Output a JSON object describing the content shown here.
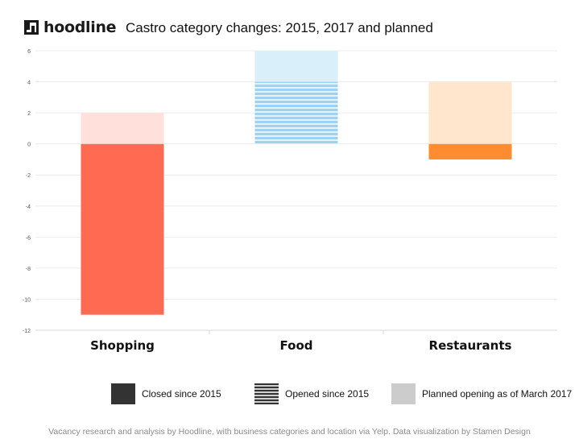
{
  "header": {
    "logo_text": "hoodline",
    "title": "Castro category changes: 2015, 2017 and planned"
  },
  "legend": {
    "closed_label": "Closed since 2015",
    "opened_label": "Opened since 2015",
    "planned_label": "Planned opening as of March 2017"
  },
  "footer": {
    "credit": "Vacancy research and analysis by Hoodline, with business categories and location via Yelp. Data visualization by Stamen Design"
  },
  "colors": {
    "shopping_closed": "#ff6b52",
    "shopping_planned": "#ffe0da",
    "food_opened_stripe": "#9fd2f0",
    "food_opened_gap": "#e4f3fb",
    "food_planned": "#d9eff9",
    "restaurants_closed": "#ff8c2e",
    "restaurants_planned": "#ffe6cc"
  },
  "chart_data": {
    "type": "bar",
    "title": "Castro category changes: 2015, 2017 and planned",
    "xlabel": "",
    "ylabel": "",
    "ylim": [
      -12,
      6
    ],
    "yticks": [
      "6",
      "4",
      "2",
      "0",
      "-2",
      "-4",
      "-6",
      "-8",
      "-10",
      "-12"
    ],
    "grid": true,
    "legend_position": "bottom",
    "categories": [
      "Shopping",
      "Food",
      "Restaurants"
    ],
    "series": [
      {
        "name": "Closed since 2015",
        "values": [
          -11,
          0,
          -1
        ]
      },
      {
        "name": "Opened since 2015",
        "values": [
          0,
          4,
          0
        ]
      },
      {
        "name": "Planned opening as of March 2017",
        "values": [
          2,
          2,
          4
        ]
      }
    ]
  }
}
